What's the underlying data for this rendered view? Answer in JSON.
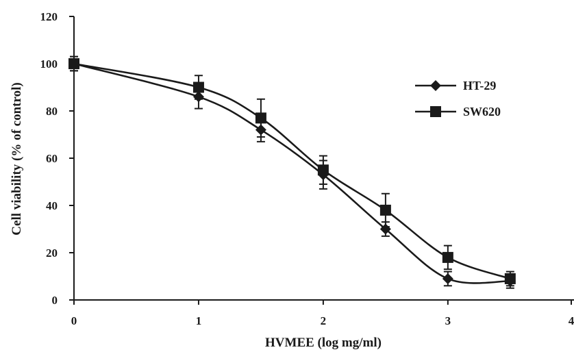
{
  "chart_data": {
    "type": "line",
    "xlabel": "HVMEE (log mg/ml)",
    "ylabel": "Cell viability (% of control)",
    "xlim": [
      0,
      4
    ],
    "ylim": [
      0,
      120
    ],
    "x_ticks": [
      "0",
      "1",
      "2",
      "3",
      "4"
    ],
    "y_ticks": [
      "0",
      "20",
      "40",
      "60",
      "80",
      "100",
      "120"
    ],
    "grid": false,
    "legend_position": "right",
    "series": [
      {
        "name": "HT-29",
        "marker": "diamond",
        "color": "#1a1a1a",
        "x": [
          0,
          1,
          1.5,
          2,
          2.5,
          3,
          3.5
        ],
        "y": [
          100,
          86,
          72,
          53,
          30,
          9,
          8
        ],
        "error": [
          3,
          5,
          5,
          6,
          3,
          3,
          3
        ]
      },
      {
        "name": "SW620",
        "marker": "square",
        "color": "#1a1a1a",
        "x": [
          0,
          1,
          1.5,
          2,
          2.5,
          3,
          3.5
        ],
        "y": [
          100,
          90,
          77,
          55,
          38,
          18,
          9
        ],
        "error": [
          3,
          5,
          8,
          6,
          7,
          5,
          3
        ]
      }
    ]
  }
}
